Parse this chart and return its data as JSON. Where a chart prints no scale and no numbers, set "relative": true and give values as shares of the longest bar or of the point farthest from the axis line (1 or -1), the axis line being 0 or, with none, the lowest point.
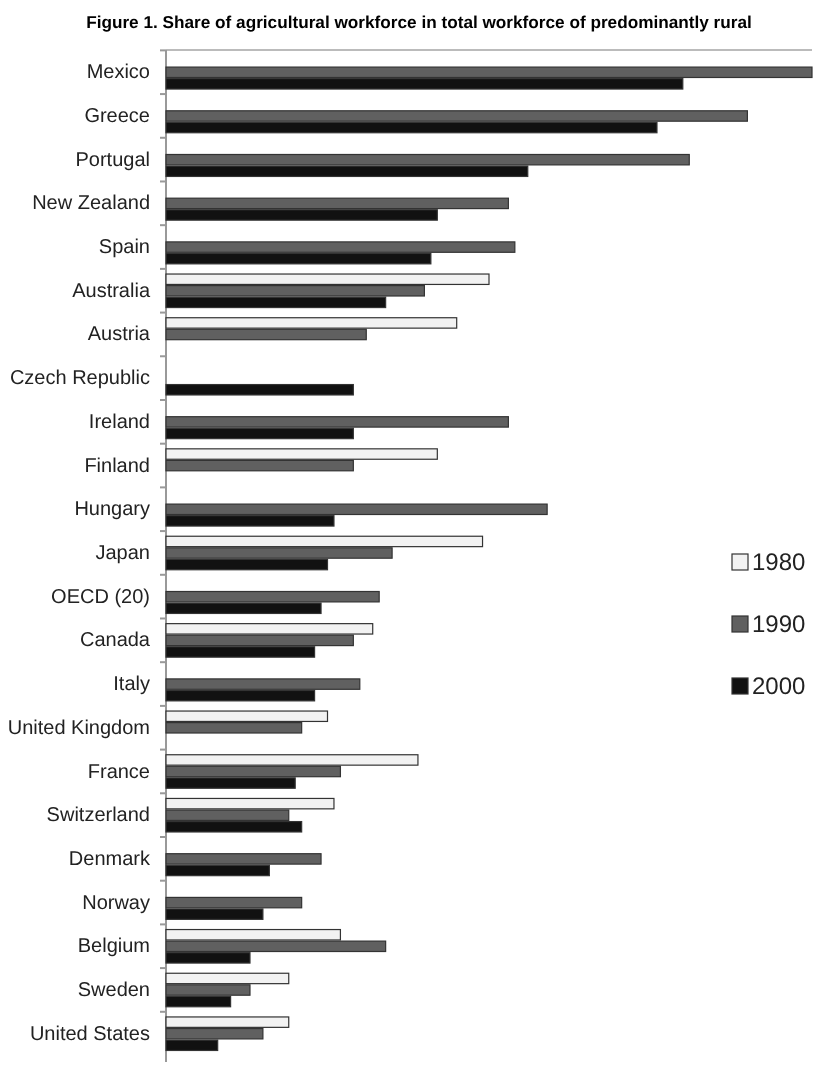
{
  "chart_data": {
    "type": "bar",
    "orientation": "horizontal",
    "relative": true,
    "title": "Figure 1. Share of agricultural workforce in total workforce of predominantly rural",
    "categories": [
      "Mexico",
      "Greece",
      "Portugal",
      "New Zealand",
      "Spain",
      "Australia",
      "Austria",
      "Czech Republic",
      "Ireland",
      "Finland",
      "Hungary",
      "Japan",
      "OECD (20)",
      "Canada",
      "Italy",
      "United Kingdom",
      "France",
      "Switzerland",
      "Denmark",
      "Norway",
      "Belgium",
      "Sweden",
      "United States"
    ],
    "series": [
      {
        "name": "1980",
        "color": "#f2f2f2",
        "values": [
          null,
          null,
          null,
          null,
          null,
          0.5,
          0.45,
          null,
          null,
          0.42,
          null,
          0.49,
          null,
          0.32,
          null,
          0.25,
          0.39,
          0.26,
          null,
          null,
          0.27,
          0.19,
          0.19
        ]
      },
      {
        "name": "1990",
        "color": "#606060",
        "values": [
          1,
          0.9,
          0.81,
          0.53,
          0.54,
          0.4,
          0.31,
          null,
          0.53,
          0.29,
          0.59,
          0.35,
          0.33,
          0.29,
          0.3,
          0.21,
          0.27,
          0.19,
          0.24,
          0.21,
          0.34,
          0.13,
          0.15
        ]
      },
      {
        "name": "2000",
        "color": "#111111",
        "values": [
          0.8,
          0.76,
          0.56,
          0.42,
          0.41,
          0.34,
          null,
          0.29,
          0.29,
          null,
          0.26,
          0.25,
          0.24,
          0.23,
          0.23,
          null,
          0.2,
          0.21,
          0.16,
          0.15,
          0.13,
          0.1,
          0.08
        ]
      }
    ],
    "legend": "right"
  }
}
